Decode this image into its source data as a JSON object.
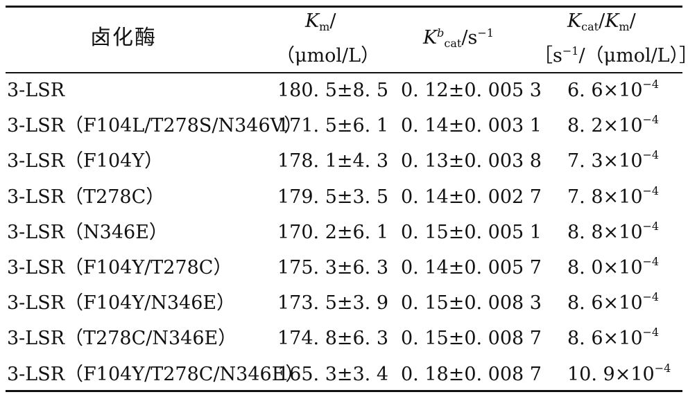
{
  "headers": {
    "enzyme": "卤化酶",
    "km_symbol": "K",
    "km_sub": "m",
    "km_slash": "/",
    "km_unit": "（μmol/L）",
    "kcat_symbol": "K",
    "kcat_sup": "b",
    "kcat_sub": "cat",
    "kcat_unit": "/s",
    "kcat_unit_sup": "−1",
    "ratio_k1": "K",
    "ratio_sub1": "cat",
    "ratio_slash": "/",
    "ratio_k2": "K",
    "ratio_sub2": "m",
    "ratio_slash2": "/",
    "ratio_unit_open": "［s",
    "ratio_unit_sup": "−1",
    "ratio_unit_close": "/（μmol/L）］"
  },
  "rows": [
    {
      "enzyme": "3-LSR",
      "km": "180. 5±8. 5",
      "kcat": "0. 12±0. 005 3",
      "ratio": "6. 6×10",
      "exp": "−4"
    },
    {
      "enzyme": "3-LSR（F104L/T278S/N346V）",
      "km": "171. 5±6. 1",
      "kcat": "0. 14±0. 003 1",
      "ratio": "8. 2×10",
      "exp": "−4"
    },
    {
      "enzyme": "3-LSR（F104Y）",
      "km": "178. 1±4. 3",
      "kcat": "0. 13±0. 003 8",
      "ratio": "7. 3×10",
      "exp": "−4"
    },
    {
      "enzyme": "3-LSR（T278C）",
      "km": "179. 5±3. 5",
      "kcat": "0. 14±0. 002 7",
      "ratio": "7. 8×10",
      "exp": "−4"
    },
    {
      "enzyme": "3-LSR（N346E）",
      "km": "170. 2±6. 1",
      "kcat": "0. 15±0. 005 1",
      "ratio": "8. 8×10",
      "exp": "−4"
    },
    {
      "enzyme": "3-LSR（F104Y/T278C）",
      "km": "175. 3±6. 3",
      "kcat": "0. 14±0. 005 7",
      "ratio": "8. 0×10",
      "exp": "−4"
    },
    {
      "enzyme": "3-LSR（F104Y/N346E）",
      "km": "173. 5±3. 9",
      "kcat": "0. 15±0. 008 3",
      "ratio": "8. 6×10",
      "exp": "−4"
    },
    {
      "enzyme": "3-LSR（T278C/N346E）",
      "km": "174. 8±6. 3",
      "kcat": "0. 15±0. 008 7",
      "ratio": "8. 6×10",
      "exp": "−4"
    },
    {
      "enzyme": "3-LSR（F104Y/T278C/N346E）",
      "km": "165. 3±3. 4",
      "kcat": "0. 18±0. 008 7",
      "ratio": "10. 9×10",
      "exp": "−4"
    }
  ]
}
